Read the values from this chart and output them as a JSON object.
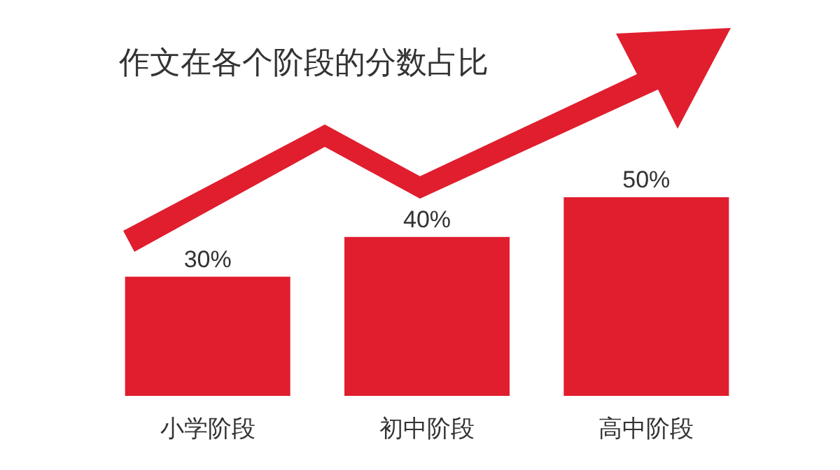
{
  "chart_data": {
    "type": "bar",
    "title": "作文在各个阶段的分数占比",
    "categories": [
      "小学阶段",
      "初中阶段",
      "高中阶段"
    ],
    "values": [
      30,
      40,
      50
    ],
    "value_labels": [
      "30%",
      "40%",
      "50%"
    ],
    "color": "#e01e2e"
  }
}
